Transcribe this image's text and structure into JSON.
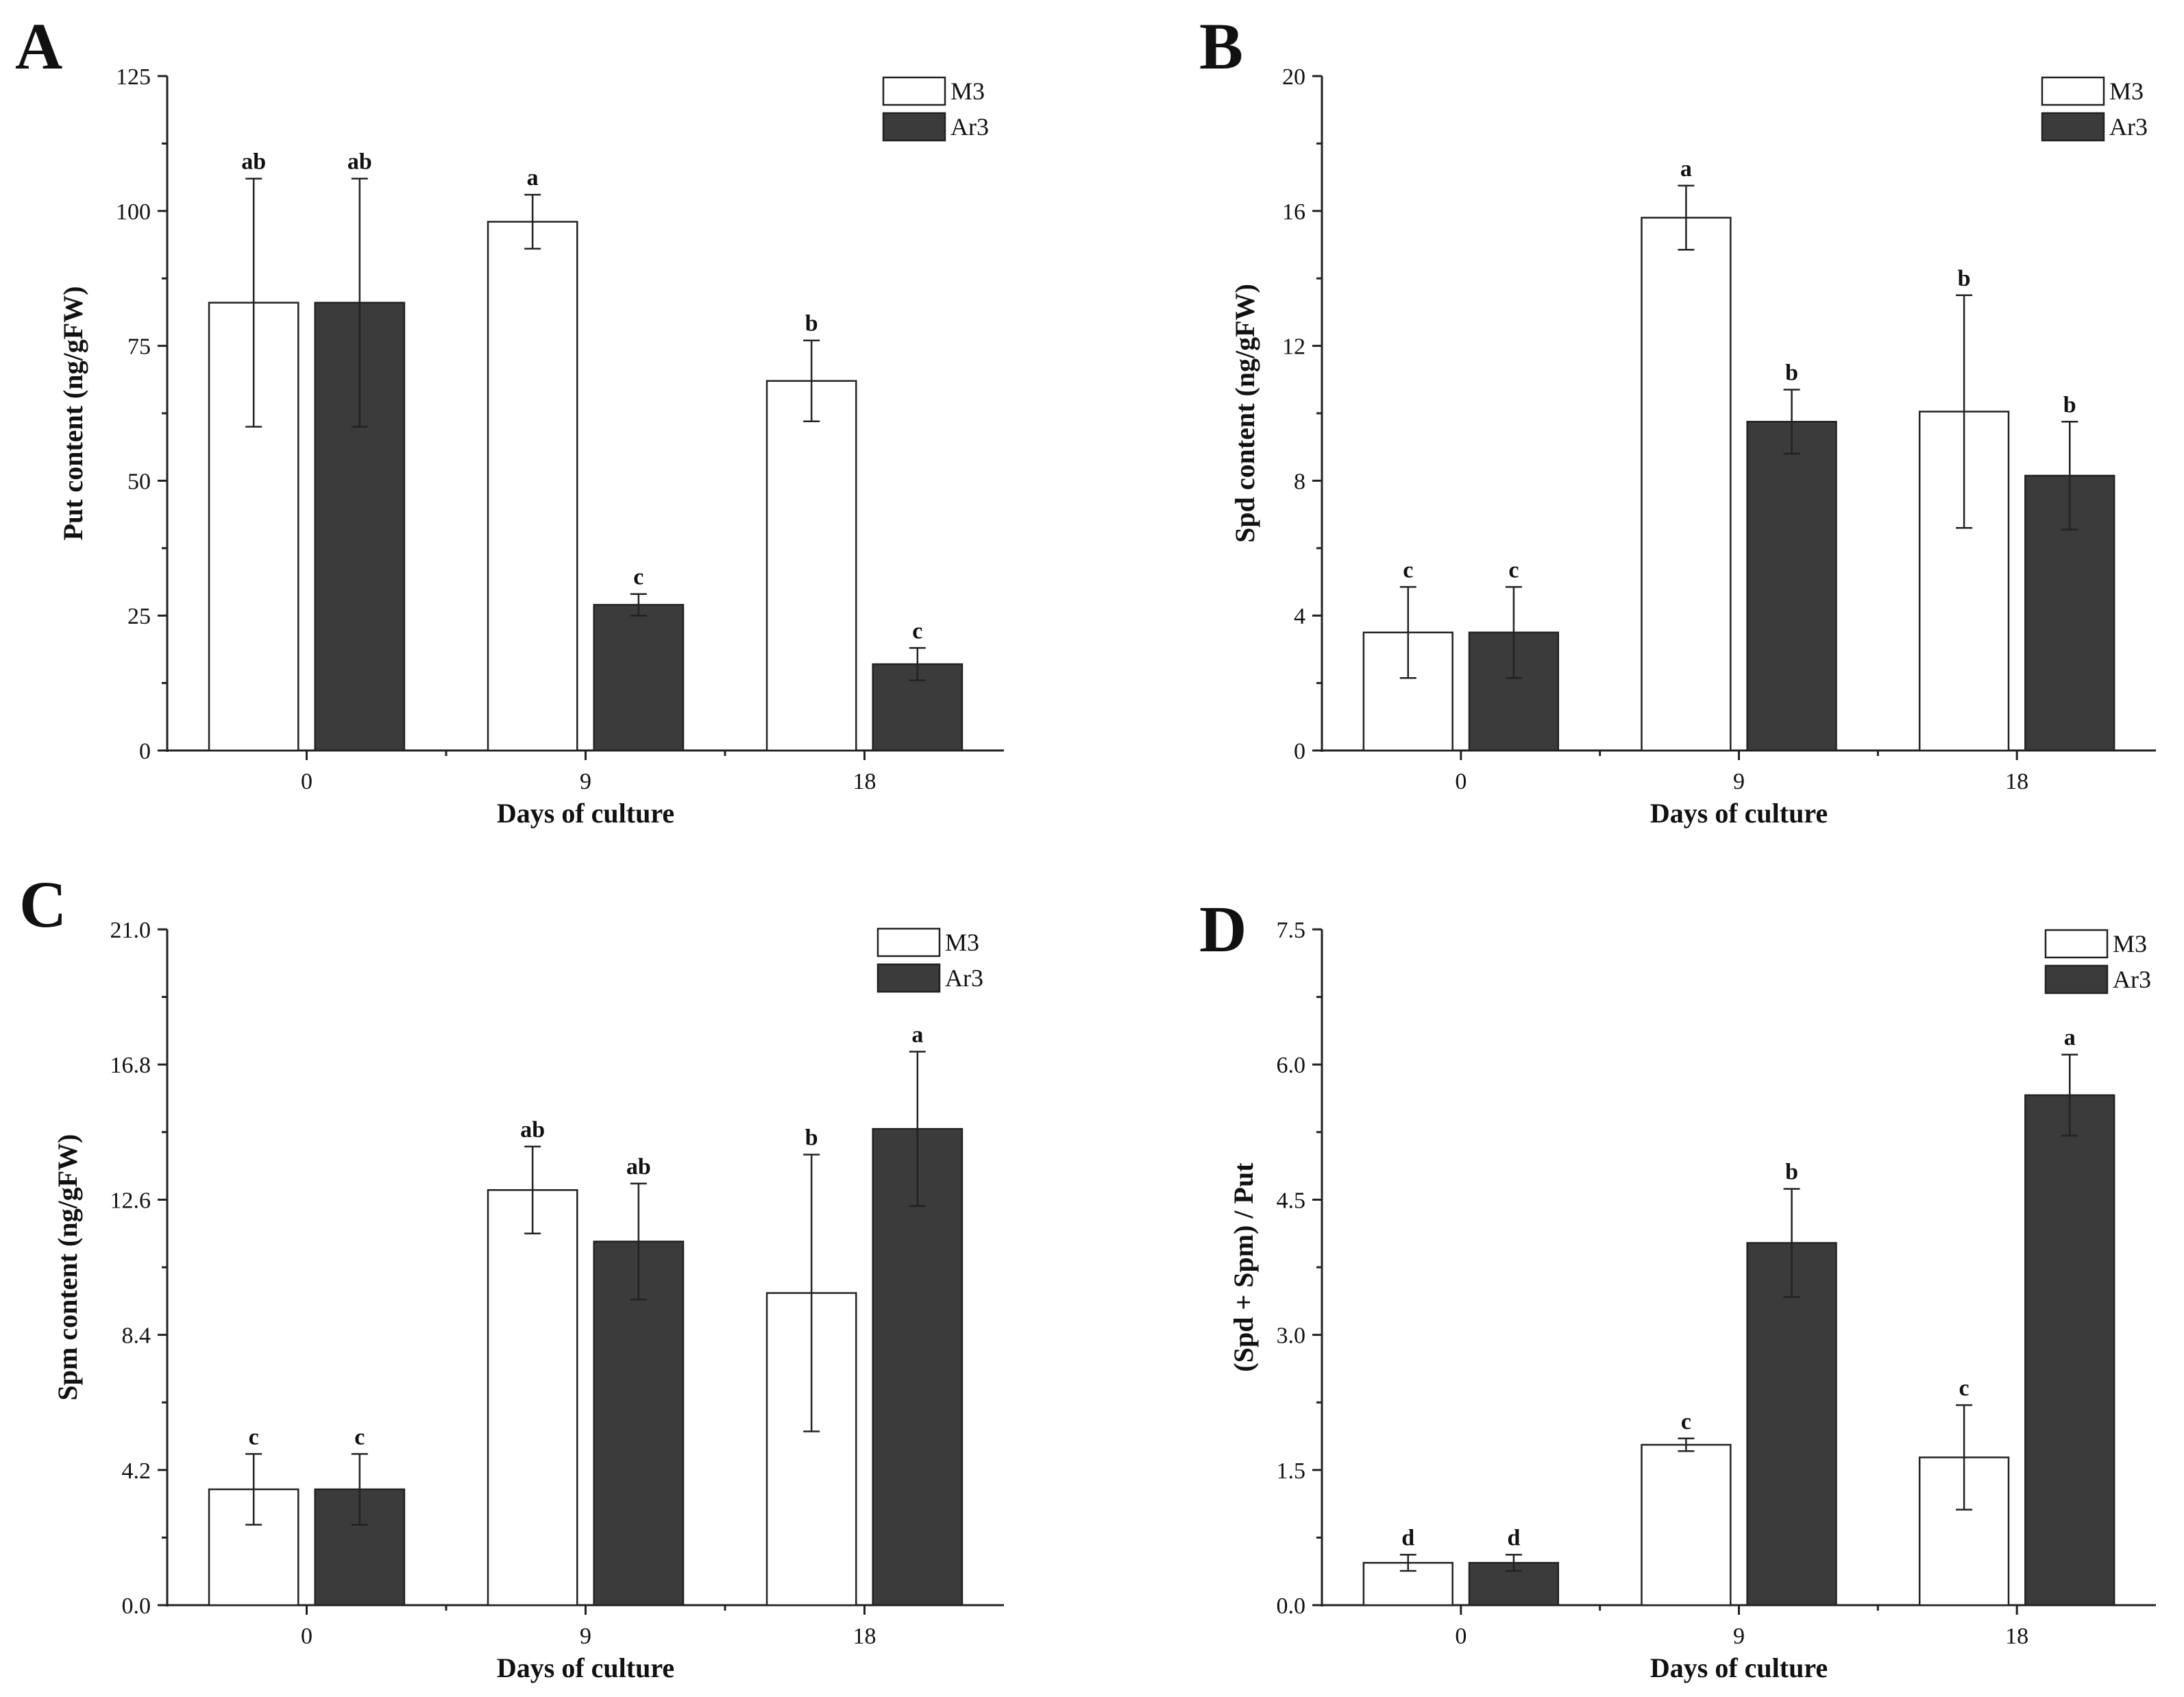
{
  "colors": {
    "m3_fill": "#ffffff",
    "ar3_fill": "#3b3b3b",
    "stroke": "#222222"
  },
  "chart_data": [
    {
      "panel": "A",
      "type": "bar",
      "categories": [
        "0",
        "9",
        "18"
      ],
      "xlabel": "Days of culture",
      "ylabel": "Put content (ng/gFW)",
      "ylim": [
        0,
        125
      ],
      "yticks": [
        "0",
        "25",
        "50",
        "75",
        "100",
        "125"
      ],
      "legend": [
        "M3",
        "Ar3"
      ],
      "series": [
        {
          "name": "M3",
          "values": [
            83,
            98,
            68.5
          ],
          "errors": [
            23,
            5,
            7.5
          ],
          "letters": [
            "ab",
            "a",
            "b"
          ]
        },
        {
          "name": "Ar3",
          "values": [
            83,
            27,
            16
          ],
          "errors": [
            23,
            2,
            3
          ],
          "letters": [
            "ab",
            "c",
            "c"
          ]
        }
      ]
    },
    {
      "panel": "B",
      "type": "bar",
      "categories": [
        "0",
        "9",
        "18"
      ],
      "xlabel": "Days of culture",
      "ylabel": "Spd content (ng/gFW)",
      "ylim": [
        0,
        20
      ],
      "yticks": [
        "0",
        "4",
        "8",
        "12",
        "16",
        "20"
      ],
      "legend": [
        "M3",
        "Ar3"
      ],
      "series": [
        {
          "name": "M3",
          "values": [
            3.5,
            15.8,
            10.05
          ],
          "errors": [
            1.35,
            0.95,
            3.45
          ],
          "letters": [
            "c",
            "a",
            "b"
          ]
        },
        {
          "name": "Ar3",
          "values": [
            3.5,
            9.75,
            8.15
          ],
          "errors": [
            1.35,
            0.95,
            1.6
          ],
          "letters": [
            "c",
            "b",
            "b"
          ]
        }
      ]
    },
    {
      "panel": "C",
      "type": "bar",
      "categories": [
        "0",
        "9",
        "18"
      ],
      "xlabel": "Days of culture",
      "ylabel": "Spm content (ng/gFW)",
      "ylim": [
        0,
        21
      ],
      "yticks": [
        "0.0",
        "4.2",
        "8.4",
        "12.6",
        "16.8",
        "21.0"
      ],
      "legend": [
        "M3",
        "Ar3"
      ],
      "series": [
        {
          "name": "M3",
          "values": [
            3.6,
            12.9,
            9.7
          ],
          "errors": [
            1.1,
            1.35,
            4.3
          ],
          "letters": [
            "c",
            "ab",
            "b"
          ]
        },
        {
          "name": "Ar3",
          "values": [
            3.6,
            11.3,
            14.8
          ],
          "errors": [
            1.1,
            1.8,
            2.4
          ],
          "letters": [
            "c",
            "ab",
            "a"
          ]
        }
      ]
    },
    {
      "panel": "D",
      "type": "bar",
      "categories": [
        "0",
        "9",
        "18"
      ],
      "xlabel": "Days of culture",
      "ylabel": "(Spd + Spm) / Put",
      "ylim": [
        0,
        7.5
      ],
      "yticks": [
        "0.0",
        "1.5",
        "3.0",
        "4.5",
        "6.0",
        "7.5"
      ],
      "legend": [
        "M3",
        "Ar3"
      ],
      "series": [
        {
          "name": "M3",
          "values": [
            0.47,
            1.78,
            1.64
          ],
          "errors": [
            0.09,
            0.07,
            0.58
          ],
          "letters": [
            "d",
            "c",
            "c"
          ]
        },
        {
          "name": "Ar3",
          "values": [
            0.47,
            4.02,
            5.66
          ],
          "errors": [
            0.09,
            0.6,
            0.45
          ],
          "letters": [
            "d",
            "b",
            "a"
          ]
        }
      ]
    }
  ]
}
